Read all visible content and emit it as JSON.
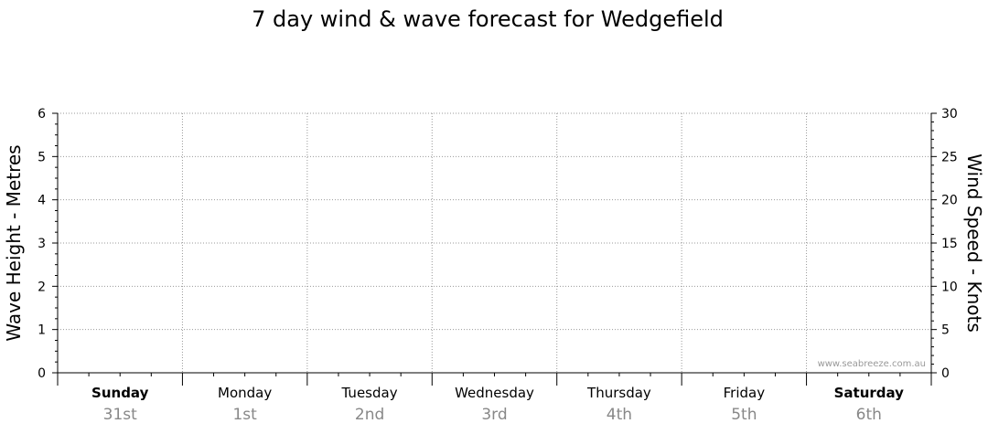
{
  "chart_data": {
    "type": "line",
    "title": "7 day wind & wave forecast for Wedgefield",
    "ylabel_left": "Wave Height - Metres",
    "ylabel_right": "Wind Speed - Knots",
    "ylim_left": [
      0,
      6
    ],
    "ylim_right": [
      0,
      30
    ],
    "yticks_left": [
      "0",
      "1",
      "2",
      "3",
      "4",
      "5",
      "6"
    ],
    "yticks_right": [
      "0",
      "5",
      "10",
      "15",
      "20",
      "25",
      "30"
    ],
    "days": [
      {
        "name": "Sunday",
        "date": "31st",
        "bold": true
      },
      {
        "name": "Monday",
        "date": "1st",
        "bold": false
      },
      {
        "name": "Tuesday",
        "date": "2nd",
        "bold": false
      },
      {
        "name": "Wednesday",
        "date": "3rd",
        "bold": false
      },
      {
        "name": "Thursday",
        "date": "4th",
        "bold": false
      },
      {
        "name": "Friday",
        "date": "5th",
        "bold": false
      },
      {
        "name": "Saturday",
        "date": "6th",
        "bold": true
      }
    ],
    "series": [],
    "grid": true,
    "watermark": "www.seabreeze.com.au"
  }
}
